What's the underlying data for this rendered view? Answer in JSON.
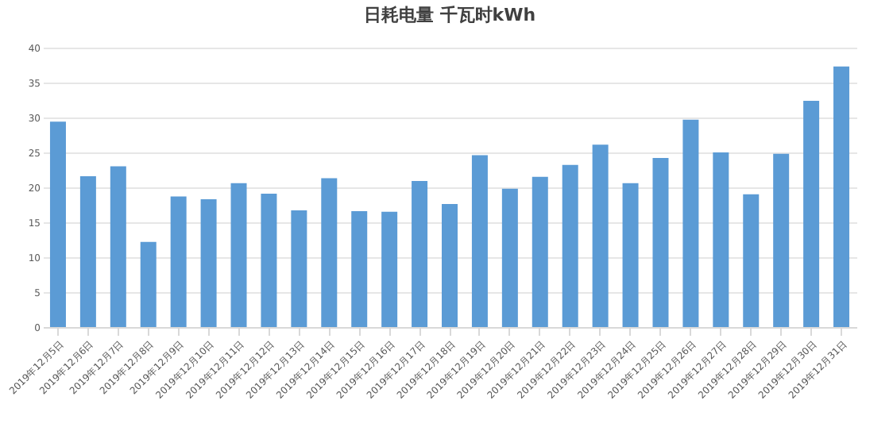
{
  "chart_data": {
    "type": "bar",
    "title": "日耗电量 千瓦时kWh",
    "categories": [
      "2019年12月5日",
      "2019年12月6日",
      "2019年12月7日",
      "2019年12月8日",
      "2019年12月9日",
      "2019年12月10日",
      "2019年12月11日",
      "2019年12月12日",
      "2019年12月13日",
      "2019年12月14日",
      "2019年12月15日",
      "2019年12月16日",
      "2019年12月17日",
      "2019年12月18日",
      "2019年12月19日",
      "2019年12月20日",
      "2019年12月21日",
      "2019年12月22日",
      "2019年12月23日",
      "2019年12月24日",
      "2019年12月25日",
      "2019年12月26日",
      "2019年12月27日",
      "2019年12月28日",
      "2019年12月29日",
      "2019年12月30日",
      "2019年12月31日"
    ],
    "values": [
      29.4,
      21.6,
      23.0,
      12.2,
      18.7,
      18.3,
      20.6,
      19.1,
      16.7,
      21.3,
      16.6,
      16.5,
      20.9,
      17.6,
      24.6,
      19.8,
      21.5,
      23.2,
      26.1,
      20.6,
      24.2,
      29.7,
      25.0,
      19.0,
      24.8,
      32.4,
      37.3
    ],
    "color": "#5b9bd5",
    "ylim": [
      0,
      40
    ],
    "yticks": [
      0,
      5,
      10,
      15,
      20,
      25,
      30,
      35,
      40
    ],
    "grid": "y"
  }
}
